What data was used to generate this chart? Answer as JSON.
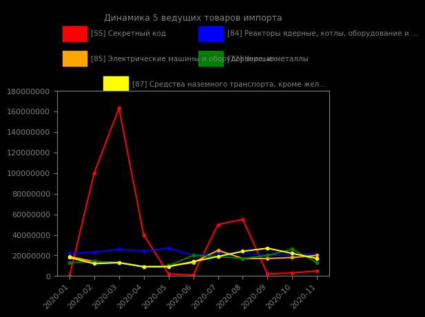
{
  "title": "Динамика 5 ведущих товаров импорта",
  "background_color": "#000000",
  "text_color": "#808080",
  "x_labels": [
    "2020-01",
    "2020-02",
    "2020-03",
    "2020-04",
    "2020-05",
    "2020-06",
    "2020-07",
    "2020-08",
    "2020-09",
    "2020-10",
    "2020-11"
  ],
  "series": [
    {
      "label": "[SS] Секретный код",
      "color": "#ff0000",
      "data": [
        0,
        100000000,
        163000000,
        40000000,
        2000000,
        1000000,
        50000000,
        55000000,
        2000000,
        3000000,
        5000000
      ]
    },
    {
      "label": "[84] Реакторы ядерные, котлы, оборудование и ...",
      "color": "#0000ff",
      "data": [
        22000000,
        23000000,
        26000000,
        24000000,
        27000000,
        20000000,
        22000000,
        23000000,
        20000000,
        21000000,
        21000000
      ]
    },
    {
      "label": "[85] Электрические машины и оборудование, их ...",
      "color": "#ffa500",
      "data": [
        19000000,
        14000000,
        13000000,
        9000000,
        10000000,
        13000000,
        25000000,
        17000000,
        17000000,
        18000000,
        20000000
      ]
    },
    {
      "label": "[72] Черные металлы",
      "color": "#008000",
      "data": [
        13000000,
        14000000,
        13000000,
        9000000,
        10000000,
        20000000,
        19000000,
        17000000,
        20000000,
        26000000,
        13000000
      ]
    },
    {
      "label": "[87] Средства наземного транспорта, кроме жел...",
      "color": "#ffff00",
      "data": [
        18000000,
        12000000,
        13000000,
        9000000,
        9000000,
        14000000,
        19000000,
        24000000,
        27000000,
        22000000,
        17000000
      ]
    }
  ],
  "ylim": [
    0,
    180000000
  ],
  "yticks": [
    0,
    20000000,
    40000000,
    60000000,
    80000000,
    100000000,
    120000000,
    140000000,
    160000000,
    180000000
  ],
  "title_fontsize": 9,
  "legend_fontsize": 7.5,
  "tick_fontsize": 8
}
